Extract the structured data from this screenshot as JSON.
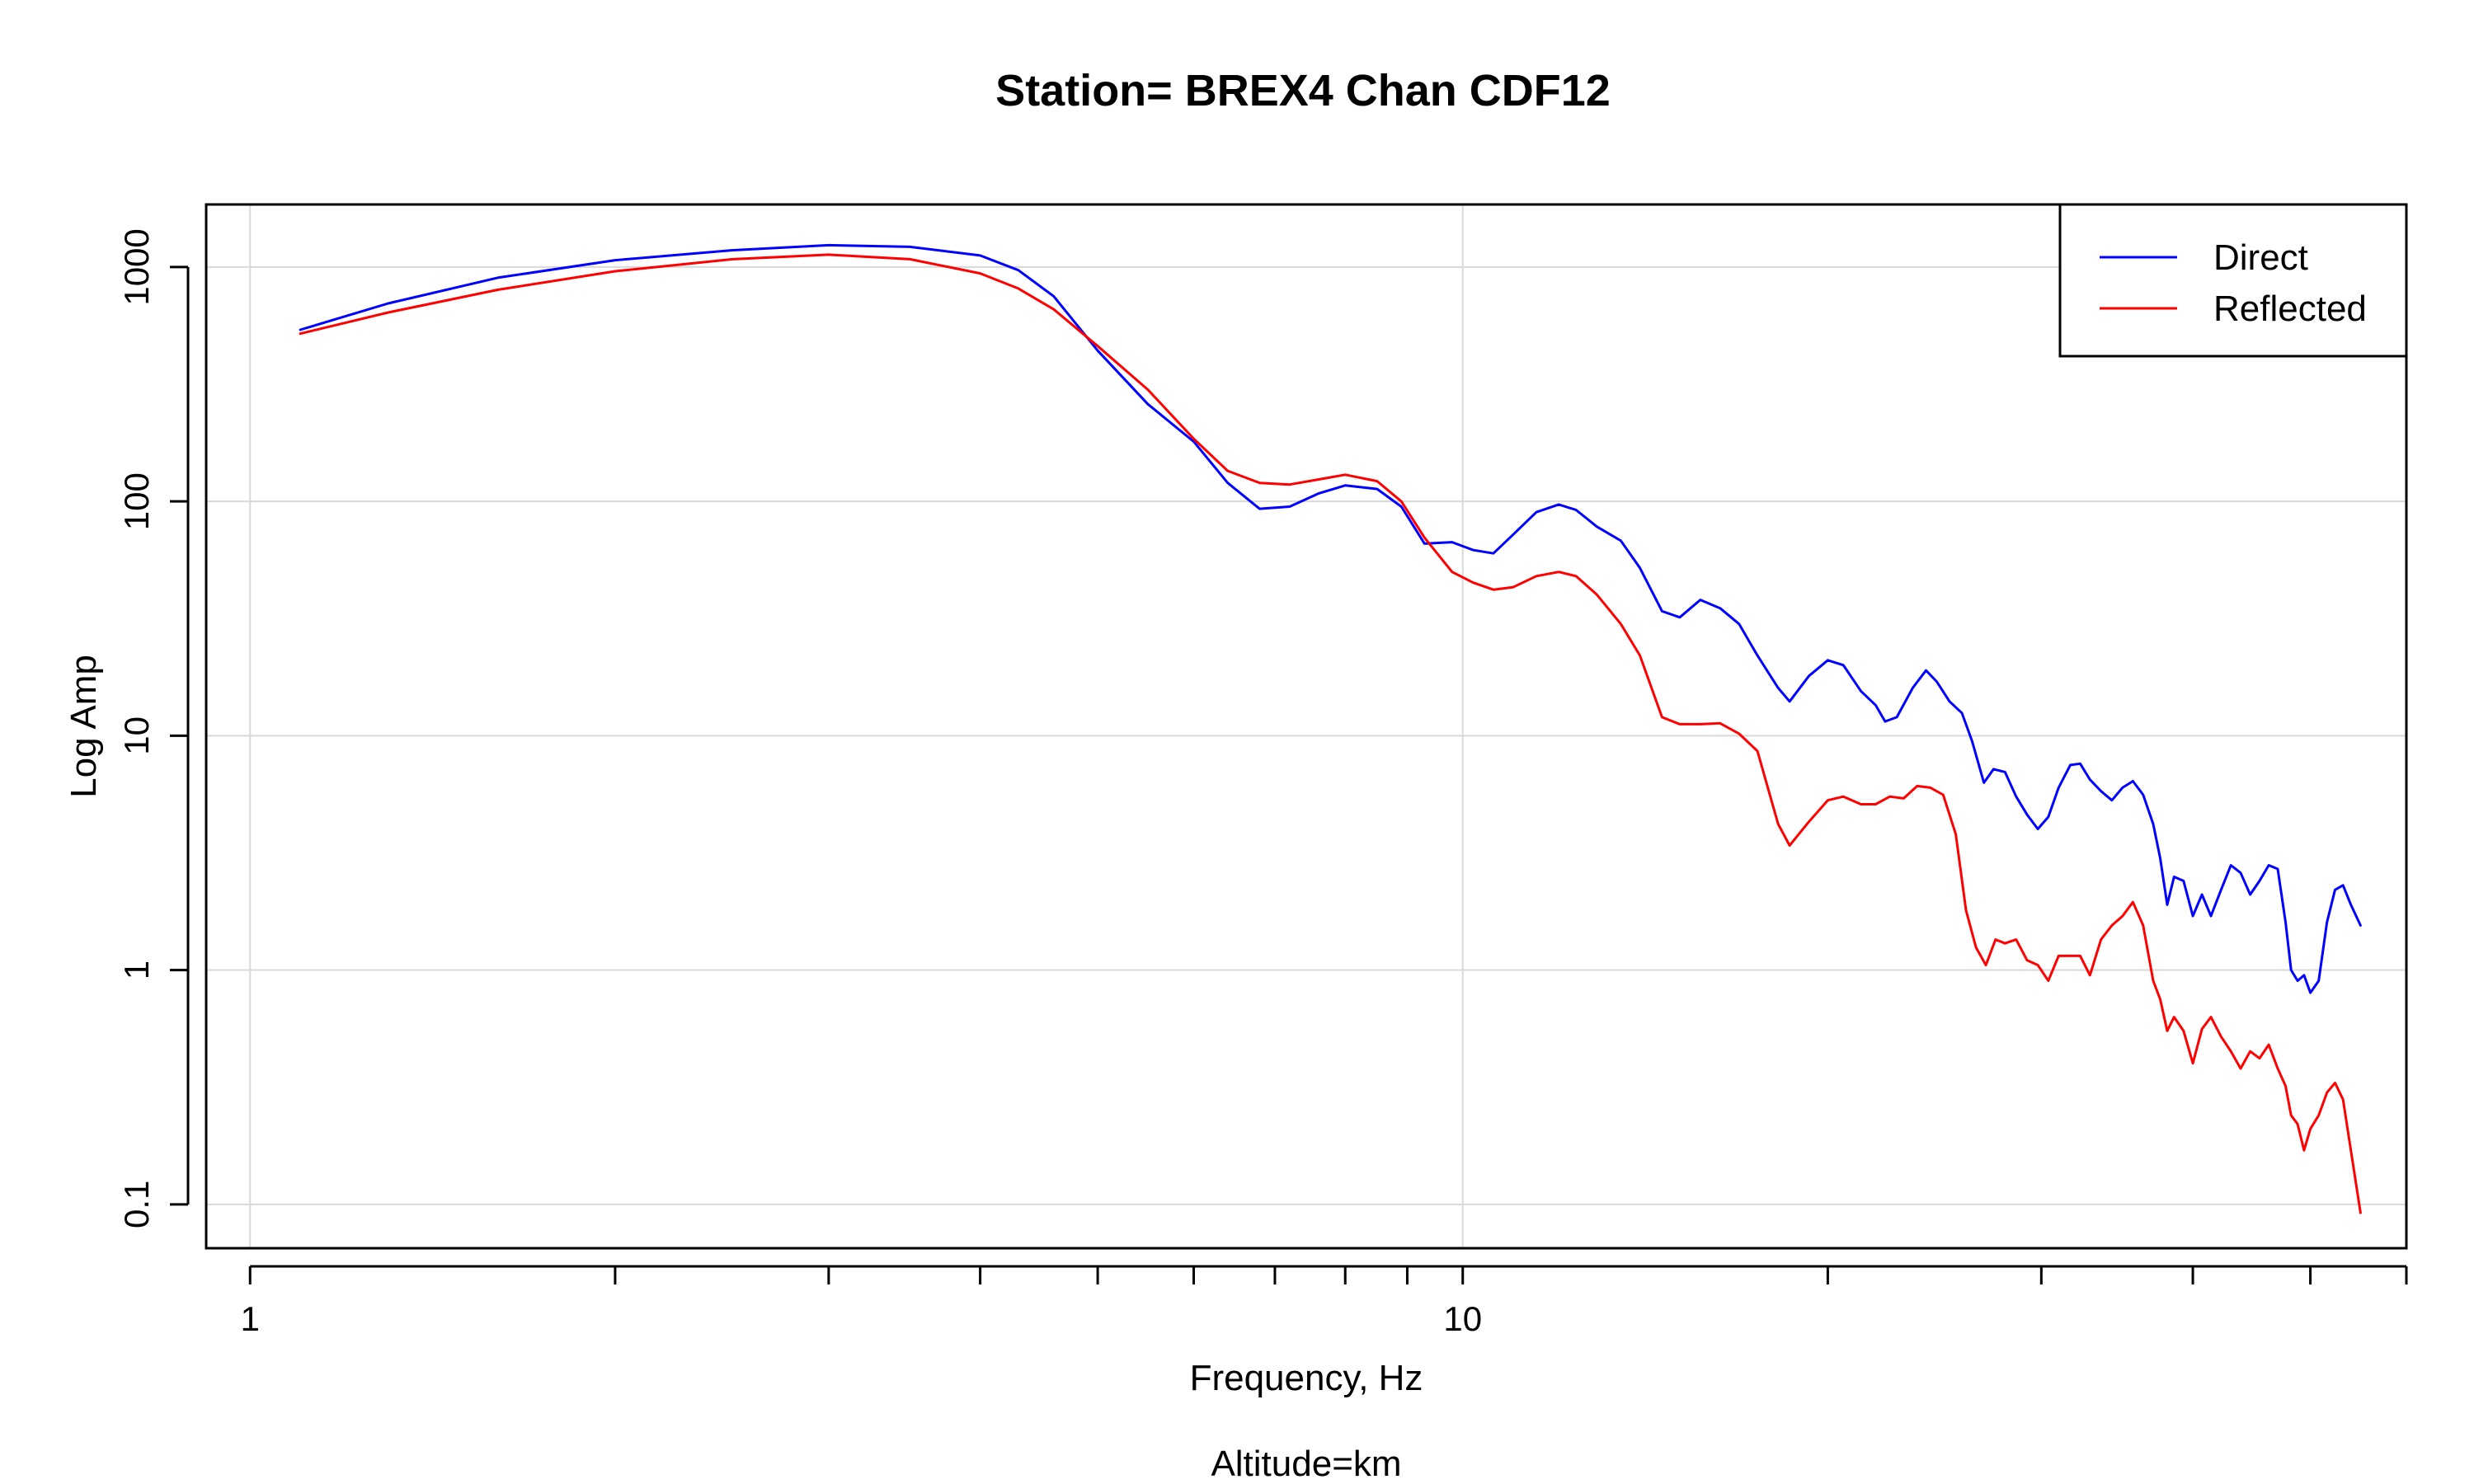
{
  "chart_data": {
    "type": "line",
    "title": "Station= BREX4 Chan CDF12",
    "xlabel": "Frequency, Hz",
    "ylabel": "Log Amp",
    "subtitle": "Altitude=km",
    "x_scale": "log",
    "y_scale": "log",
    "xlim": [
      0.92,
      60
    ],
    "ylim": [
      0.065,
      1850
    ],
    "x_ticks": [
      1,
      2,
      3,
      4,
      5,
      6,
      7,
      8,
      9,
      10,
      20,
      30,
      40,
      50,
      60
    ],
    "x_tick_labels": [
      {
        "value": 1,
        "label": "1"
      },
      {
        "value": 10,
        "label": "10"
      }
    ],
    "y_ticks": [
      {
        "value": 0.1,
        "label": "0.1"
      },
      {
        "value": 1,
        "label": "1"
      },
      {
        "value": 10,
        "label": "10"
      },
      {
        "value": 100,
        "label": "100"
      },
      {
        "value": 1000,
        "label": "1000"
      }
    ],
    "x_grid": [
      1,
      10
    ],
    "grid": true,
    "legend_position": "top-right",
    "series": [
      {
        "name": "Direct",
        "color": "#0000ff",
        "points": [
          [
            1.1,
            540
          ],
          [
            1.3,
            700
          ],
          [
            1.6,
            900
          ],
          [
            2.0,
            1070
          ],
          [
            2.5,
            1180
          ],
          [
            3.0,
            1240
          ],
          [
            3.5,
            1220
          ],
          [
            4.0,
            1120
          ],
          [
            4.3,
            970
          ],
          [
            4.6,
            750
          ],
          [
            5.0,
            440
          ],
          [
            5.5,
            260
          ],
          [
            6.0,
            180
          ],
          [
            6.4,
            120
          ],
          [
            6.8,
            93
          ],
          [
            7.2,
            95
          ],
          [
            7.6,
            108
          ],
          [
            8.0,
            117
          ],
          [
            8.5,
            113
          ],
          [
            8.9,
            95
          ],
          [
            9.3,
            66
          ],
          [
            9.8,
            67
          ],
          [
            10.2,
            62
          ],
          [
            10.6,
            60
          ],
          [
            11.0,
            72
          ],
          [
            11.5,
            90
          ],
          [
            12.0,
            97
          ],
          [
            12.4,
            92
          ],
          [
            12.9,
            78
          ],
          [
            13.5,
            68
          ],
          [
            14.0,
            52
          ],
          [
            14.6,
            34
          ],
          [
            15.1,
            32
          ],
          [
            15.7,
            38
          ],
          [
            16.3,
            35
          ],
          [
            16.9,
            30
          ],
          [
            17.5,
            22
          ],
          [
            18.2,
            16
          ],
          [
            18.6,
            14
          ],
          [
            19.3,
            18
          ],
          [
            20.0,
            21
          ],
          [
            20.6,
            20
          ],
          [
            21.3,
            15.5
          ],
          [
            21.9,
            13.5
          ],
          [
            22.3,
            11.5
          ],
          [
            22.8,
            12
          ],
          [
            23.5,
            16
          ],
          [
            24.1,
            19
          ],
          [
            24.6,
            17
          ],
          [
            25.2,
            14
          ],
          [
            25.8,
            12.5
          ],
          [
            26.3,
            9.5
          ],
          [
            26.9,
            6.3
          ],
          [
            27.4,
            7.2
          ],
          [
            28.0,
            7.0
          ],
          [
            28.6,
            5.5
          ],
          [
            29.2,
            4.6
          ],
          [
            29.8,
            4.0
          ],
          [
            30.4,
            4.5
          ],
          [
            31.0,
            6.0
          ],
          [
            31.7,
            7.5
          ],
          [
            32.3,
            7.6
          ],
          [
            32.9,
            6.5
          ],
          [
            33.6,
            5.8
          ],
          [
            34.3,
            5.3
          ],
          [
            35.0,
            6.0
          ],
          [
            35.7,
            6.4
          ],
          [
            36.4,
            5.6
          ],
          [
            37.1,
            4.2
          ],
          [
            37.6,
            3.0
          ],
          [
            38.1,
            1.9
          ],
          [
            38.6,
            2.5
          ],
          [
            39.3,
            2.4
          ],
          [
            40.0,
            1.7
          ],
          [
            40.7,
            2.1
          ],
          [
            41.4,
            1.7
          ],
          [
            42.2,
            2.2
          ],
          [
            43.0,
            2.8
          ],
          [
            43.8,
            2.6
          ],
          [
            44.6,
            2.1
          ],
          [
            45.4,
            2.4
          ],
          [
            46.2,
            2.8
          ],
          [
            47.0,
            2.7
          ],
          [
            47.7,
            1.6
          ],
          [
            48.2,
            1.0
          ],
          [
            48.8,
            0.9
          ],
          [
            49.4,
            0.95
          ],
          [
            50.0,
            0.8
          ],
          [
            50.8,
            0.9
          ],
          [
            51.6,
            1.6
          ],
          [
            52.4,
            2.2
          ],
          [
            53.2,
            2.3
          ],
          [
            54.0,
            1.9
          ],
          [
            55.0,
            1.55
          ]
        ]
      },
      {
        "name": "Reflected",
        "color": "#ff0000",
        "points": [
          [
            1.1,
            520
          ],
          [
            1.3,
            640
          ],
          [
            1.6,
            800
          ],
          [
            2.0,
            960
          ],
          [
            2.5,
            1080
          ],
          [
            3.0,
            1130
          ],
          [
            3.5,
            1080
          ],
          [
            4.0,
            940
          ],
          [
            4.3,
            810
          ],
          [
            4.6,
            660
          ],
          [
            5.0,
            460
          ],
          [
            5.5,
            300
          ],
          [
            6.0,
            185
          ],
          [
            6.4,
            135
          ],
          [
            6.8,
            120
          ],
          [
            7.2,
            118
          ],
          [
            7.6,
            124
          ],
          [
            8.0,
            130
          ],
          [
            8.5,
            122
          ],
          [
            8.9,
            100
          ],
          [
            9.3,
            70
          ],
          [
            9.8,
            50
          ],
          [
            10.2,
            45
          ],
          [
            10.6,
            42
          ],
          [
            11.0,
            43
          ],
          [
            11.5,
            48
          ],
          [
            12.0,
            50
          ],
          [
            12.4,
            48
          ],
          [
            12.9,
            40
          ],
          [
            13.5,
            30
          ],
          [
            14.0,
            22
          ],
          [
            14.6,
            12
          ],
          [
            15.1,
            11.2
          ],
          [
            15.7,
            11.2
          ],
          [
            16.3,
            11.3
          ],
          [
            16.9,
            10.2
          ],
          [
            17.5,
            8.6
          ],
          [
            18.2,
            4.2
          ],
          [
            18.6,
            3.4
          ],
          [
            19.3,
            4.3
          ],
          [
            20.0,
            5.3
          ],
          [
            20.6,
            5.5
          ],
          [
            21.3,
            5.1
          ],
          [
            21.9,
            5.1
          ],
          [
            22.5,
            5.5
          ],
          [
            23.1,
            5.4
          ],
          [
            23.7,
            6.1
          ],
          [
            24.3,
            6.0
          ],
          [
            24.9,
            5.6
          ],
          [
            25.5,
            3.8
          ],
          [
            26.0,
            1.8
          ],
          [
            26.5,
            1.25
          ],
          [
            27.0,
            1.05
          ],
          [
            27.5,
            1.35
          ],
          [
            28.0,
            1.3
          ],
          [
            28.6,
            1.35
          ],
          [
            29.2,
            1.1
          ],
          [
            29.8,
            1.05
          ],
          [
            30.4,
            0.9
          ],
          [
            31.0,
            1.15
          ],
          [
            31.7,
            1.15
          ],
          [
            32.3,
            1.15
          ],
          [
            32.9,
            0.95
          ],
          [
            33.6,
            1.35
          ],
          [
            34.3,
            1.55
          ],
          [
            35.0,
            1.7
          ],
          [
            35.7,
            1.95
          ],
          [
            36.4,
            1.55
          ],
          [
            37.1,
            0.9
          ],
          [
            37.6,
            0.75
          ],
          [
            38.1,
            0.55
          ],
          [
            38.6,
            0.63
          ],
          [
            39.3,
            0.55
          ],
          [
            40.0,
            0.4
          ],
          [
            40.7,
            0.56
          ],
          [
            41.4,
            0.63
          ],
          [
            42.2,
            0.52
          ],
          [
            43.0,
            0.45
          ],
          [
            43.8,
            0.38
          ],
          [
            44.6,
            0.45
          ],
          [
            45.4,
            0.42
          ],
          [
            46.2,
            0.48
          ],
          [
            47.0,
            0.38
          ],
          [
            47.7,
            0.32
          ],
          [
            48.2,
            0.24
          ],
          [
            48.8,
            0.22
          ],
          [
            49.4,
            0.17
          ],
          [
            50.0,
            0.21
          ],
          [
            50.8,
            0.24
          ],
          [
            51.6,
            0.3
          ],
          [
            52.4,
            0.33
          ],
          [
            53.2,
            0.28
          ],
          [
            54.0,
            0.17
          ],
          [
            55.0,
            0.092
          ]
        ]
      }
    ]
  }
}
